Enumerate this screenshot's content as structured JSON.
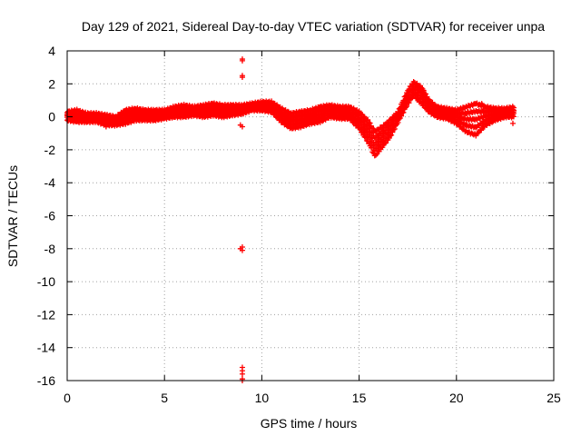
{
  "chart_data": {
    "type": "scatter",
    "title": "Day 129 of 2021, Sidereal Day-to-day VTEC variation (SDTVAR) for receiver unpa",
    "xlabel": "GPS time / hours",
    "ylabel": "SDTVAR / TECUs",
    "xlim": [
      0,
      25
    ],
    "ylim": [
      -16,
      4
    ],
    "xticks": [
      0,
      5,
      10,
      15,
      20,
      25
    ],
    "yticks": [
      4,
      2,
      0,
      -2,
      -4,
      -6,
      -8,
      -10,
      -12,
      -14,
      -16
    ],
    "grid": true,
    "marker": "plus",
    "color": "#ff0000",
    "series": [
      {
        "name": "SDTVAR",
        "band_profile": {
          "description": "dense band of points; each entry is [x_hours, y_lower_TECU, y_upper_TECU]",
          "points": [
            [
              0.0,
              -0.2,
              0.3
            ],
            [
              0.5,
              -0.3,
              0.4
            ],
            [
              1.0,
              -0.3,
              0.2
            ],
            [
              1.5,
              -0.3,
              0.2
            ],
            [
              2.0,
              -0.5,
              0.1
            ],
            [
              2.5,
              -0.5,
              0.0
            ],
            [
              3.0,
              -0.4,
              0.4
            ],
            [
              3.5,
              -0.2,
              0.5
            ],
            [
              4.0,
              -0.2,
              0.4
            ],
            [
              4.5,
              -0.2,
              0.4
            ],
            [
              5.0,
              -0.1,
              0.4
            ],
            [
              5.5,
              0.0,
              0.6
            ],
            [
              6.0,
              0.0,
              0.7
            ],
            [
              6.5,
              0.1,
              0.6
            ],
            [
              7.0,
              0.0,
              0.7
            ],
            [
              7.5,
              0.1,
              0.8
            ],
            [
              8.0,
              0.0,
              0.7
            ],
            [
              8.5,
              0.1,
              0.7
            ],
            [
              9.0,
              0.2,
              0.7
            ],
            [
              9.5,
              0.4,
              0.8
            ],
            [
              10.0,
              0.4,
              0.9
            ],
            [
              10.5,
              0.3,
              0.9
            ],
            [
              11.0,
              -0.3,
              0.5
            ],
            [
              11.5,
              -0.7,
              0.2
            ],
            [
              12.0,
              -0.6,
              0.3
            ],
            [
              12.5,
              -0.4,
              0.4
            ],
            [
              13.0,
              -0.3,
              0.6
            ],
            [
              13.5,
              0.0,
              0.7
            ],
            [
              14.0,
              -0.1,
              0.6
            ],
            [
              14.5,
              -0.1,
              0.6
            ],
            [
              15.0,
              -0.7,
              0.3
            ],
            [
              15.5,
              -1.6,
              -0.3
            ],
            [
              15.8,
              -2.4,
              -0.9
            ],
            [
              16.2,
              -1.8,
              -0.6
            ],
            [
              16.6,
              -1.2,
              -0.2
            ],
            [
              17.0,
              -0.3,
              0.3
            ],
            [
              17.5,
              0.8,
              1.6
            ],
            [
              17.8,
              1.3,
              2.1
            ],
            [
              18.2,
              0.8,
              1.8
            ],
            [
              18.6,
              0.3,
              1.0
            ],
            [
              19.0,
              0.0,
              0.6
            ],
            [
              19.5,
              -0.1,
              0.5
            ],
            [
              20.0,
              -0.4,
              0.4
            ],
            [
              20.5,
              -0.9,
              0.6
            ],
            [
              21.0,
              -1.1,
              0.8
            ],
            [
              21.5,
              -0.5,
              0.6
            ],
            [
              22.0,
              -0.2,
              0.5
            ],
            [
              22.5,
              0.0,
              0.5
            ],
            [
              23.0,
              0.0,
              0.6
            ]
          ]
        },
        "outliers": [
          [
            9.0,
            3.5
          ],
          [
            9.0,
            3.4
          ],
          [
            9.0,
            2.5
          ],
          [
            9.0,
            2.4
          ],
          [
            8.9,
            -0.5
          ],
          [
            9.0,
            -0.6
          ],
          [
            8.9,
            -8.0
          ],
          [
            9.0,
            -8.1
          ],
          [
            9.0,
            -7.9
          ],
          [
            9.0,
            -15.2
          ],
          [
            9.0,
            -15.4
          ],
          [
            9.0,
            -15.6
          ],
          [
            9.0,
            -15.9
          ],
          [
            9.0,
            -16.0
          ],
          [
            2.0,
            -0.6
          ],
          [
            22.9,
            -0.4
          ],
          [
            21.3,
            0.8
          ]
        ]
      }
    ]
  }
}
